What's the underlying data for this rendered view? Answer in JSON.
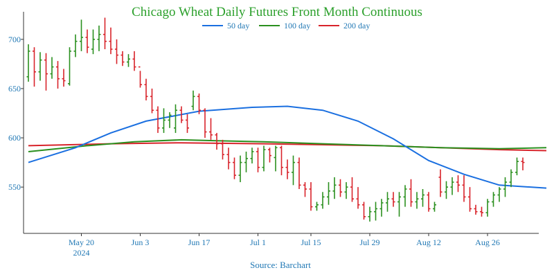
{
  "chart_data": {
    "type": "ohlc",
    "title": "Chicago Wheat Daily Futures Front Month Continuous",
    "source": "Source: Barchart",
    "ylim": [
      503,
      728
    ],
    "y_ticks": [
      550,
      600,
      650,
      700
    ],
    "x_ticks": [
      {
        "label": "May 20",
        "sub": "2024",
        "bar": 9
      },
      {
        "label": "Jun 3",
        "sub": "",
        "bar": 19
      },
      {
        "label": "Jun 17",
        "sub": "",
        "bar": 29
      },
      {
        "label": "Jul 1",
        "sub": "",
        "bar": 39
      },
      {
        "label": "Jul 15",
        "sub": "",
        "bar": 48
      },
      {
        "label": "Jul 29",
        "sub": "",
        "bar": 58
      },
      {
        "label": "Aug 12",
        "sub": "",
        "bar": 68
      },
      {
        "label": "Aug 26",
        "sub": "",
        "bar": 78
      }
    ],
    "legend": [
      {
        "name": "50 day",
        "color": "#1a6fe0"
      },
      {
        "name": "100 day",
        "color": "#2a8f1e"
      },
      {
        "name": "200 day",
        "color": "#d8232a"
      }
    ],
    "colors": {
      "up": "#2a8f1e",
      "down": "#d8232a"
    },
    "bars": [
      [
        662,
        695,
        657,
        688
      ],
      [
        688,
        692,
        652,
        667
      ],
      [
        667,
        687,
        658,
        679
      ],
      [
        679,
        686,
        648,
        665
      ],
      [
        665,
        682,
        660,
        672
      ],
      [
        672,
        678,
        650,
        660
      ],
      [
        660,
        670,
        652,
        658
      ],
      [
        655,
        692,
        653,
        688
      ],
      [
        688,
        705,
        682,
        698
      ],
      [
        698,
        720,
        688,
        702
      ],
      [
        702,
        710,
        686,
        692
      ],
      [
        690,
        710,
        685,
        700
      ],
      [
        700,
        714,
        688,
        705
      ],
      [
        705,
        722,
        690,
        698
      ],
      [
        698,
        712,
        685,
        690
      ],
      [
        690,
        700,
        675,
        684
      ],
      [
        684,
        688,
        673,
        677
      ],
      [
        677,
        685,
        672,
        680
      ],
      [
        680,
        688,
        668,
        672
      ],
      [
        672,
        668,
        651,
        654
      ],
      [
        654,
        660,
        638,
        642
      ],
      [
        642,
        650,
        625,
        628
      ],
      [
        628,
        632,
        605,
        610
      ],
      [
        610,
        630,
        605,
        618
      ],
      [
        618,
        626,
        610,
        623
      ],
      [
        610,
        634,
        605,
        628
      ],
      [
        628,
        632,
        615,
        618
      ],
      [
        618,
        624,
        605,
        610
      ],
      [
        632,
        648,
        628,
        642
      ],
      [
        642,
        645,
        624,
        628
      ],
      [
        628,
        630,
        600,
        606
      ],
      [
        606,
        620,
        598,
        603
      ],
      [
        603,
        605,
        588,
        594
      ],
      [
        594,
        598,
        578,
        583
      ],
      [
        583,
        590,
        568,
        575
      ],
      [
        575,
        580,
        558,
        562
      ],
      [
        562,
        582,
        555,
        575
      ],
      [
        575,
        586,
        565,
        579
      ],
      [
        579,
        590,
        574,
        586
      ],
      [
        586,
        590,
        565,
        570
      ],
      [
        570,
        592,
        566,
        588
      ],
      [
        588,
        590,
        575,
        582
      ],
      [
        580,
        592,
        566,
        590
      ],
      [
        590,
        592,
        562,
        570
      ],
      [
        570,
        578,
        558,
        565
      ],
      [
        565,
        582,
        552,
        575
      ],
      [
        575,
        580,
        548,
        552
      ],
      [
        552,
        555,
        540,
        548
      ],
      [
        548,
        555,
        526,
        530
      ],
      [
        530,
        535,
        526,
        532
      ],
      [
        532,
        545,
        528,
        540
      ],
      [
        540,
        555,
        532,
        546
      ],
      [
        546,
        560,
        538,
        552
      ],
      [
        552,
        558,
        540,
        545
      ],
      [
        545,
        555,
        538,
        550
      ],
      [
        550,
        560,
        535,
        538
      ],
      [
        538,
        550,
        528,
        532
      ],
      [
        532,
        535,
        517,
        520
      ],
      [
        520,
        530,
        515,
        525
      ],
      [
        525,
        535,
        516,
        528
      ],
      [
        528,
        538,
        520,
        534
      ],
      [
        534,
        545,
        525,
        538
      ],
      [
        538,
        545,
        530,
        535
      ],
      [
        535,
        545,
        520,
        540
      ],
      [
        540,
        552,
        530,
        548
      ],
      [
        548,
        558,
        530,
        535
      ],
      [
        535,
        545,
        528,
        538
      ],
      [
        538,
        548,
        530,
        542
      ],
      [
        542,
        545,
        525,
        528
      ],
      [
        528,
        535,
        525,
        532
      ],
      [
        560,
        568,
        540,
        545
      ],
      [
        545,
        556,
        538,
        550
      ],
      [
        550,
        560,
        542,
        555
      ],
      [
        555,
        562,
        545,
        552
      ],
      [
        552,
        562,
        535,
        540
      ],
      [
        540,
        550,
        525,
        528
      ],
      [
        528,
        532,
        522,
        525
      ],
      [
        525,
        530,
        520,
        524
      ],
      [
        524,
        538,
        520,
        535
      ],
      [
        535,
        545,
        530,
        542
      ],
      [
        542,
        550,
        535,
        548
      ],
      [
        548,
        560,
        540,
        555
      ],
      [
        555,
        568,
        550,
        565
      ],
      [
        565,
        580,
        562,
        576
      ],
      [
        576,
        580,
        567,
        575
      ]
    ],
    "ma50": [
      [
        0,
        575
      ],
      [
        8,
        590
      ],
      [
        14,
        605
      ],
      [
        20,
        617
      ],
      [
        29,
        627
      ],
      [
        38,
        631
      ],
      [
        44,
        632
      ],
      [
        50,
        628
      ],
      [
        56,
        617
      ],
      [
        62,
        599
      ],
      [
        68,
        577
      ],
      [
        74,
        563
      ],
      [
        80,
        552
      ],
      [
        88,
        549
      ]
    ],
    "ma100": [
      [
        0,
        586
      ],
      [
        10,
        592
      ],
      [
        18,
        596
      ],
      [
        26,
        598
      ],
      [
        32,
        597
      ],
      [
        40,
        596
      ],
      [
        50,
        594
      ],
      [
        60,
        592
      ],
      [
        70,
        590
      ],
      [
        80,
        589
      ],
      [
        88,
        590
      ]
    ],
    "ma200": [
      [
        0,
        592
      ],
      [
        14,
        594
      ],
      [
        26,
        595
      ],
      [
        40,
        594
      ],
      [
        50,
        593
      ],
      [
        60,
        592
      ],
      [
        70,
        590
      ],
      [
        80,
        588
      ],
      [
        88,
        587
      ]
    ]
  }
}
